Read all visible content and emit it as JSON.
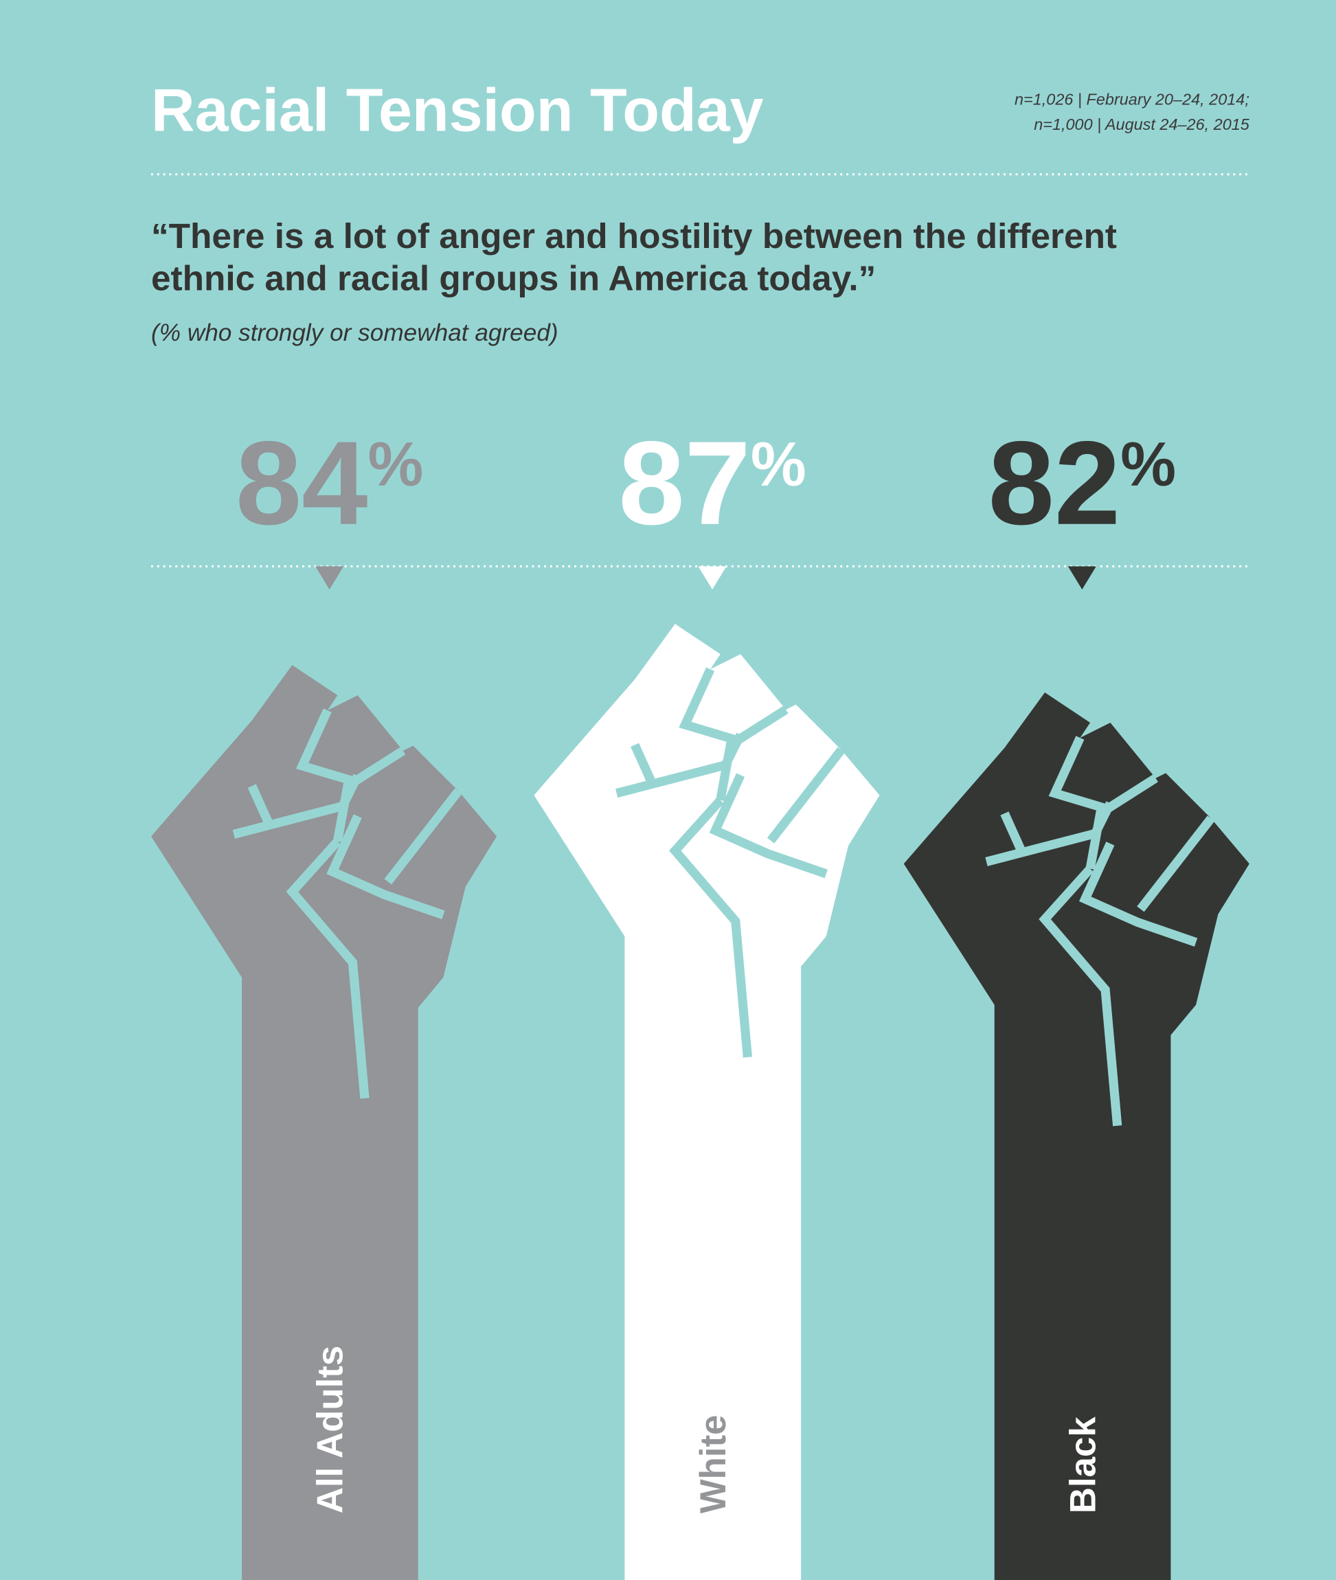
{
  "chart_data": {
    "type": "pictograph",
    "title": "Racial Tension Today",
    "source": [
      "n=1,026 | February 20–24, 2014;",
      "n=1,000 | August 24–26, 2015"
    ],
    "quote": [
      "“There is a lot of anger and hostility between the different",
      "ethnic and racial groups in America today.”"
    ],
    "note": "(% who strongly or somewhat agreed)",
    "categories": [
      "All Adults",
      "White",
      "Black"
    ],
    "values": [
      84,
      87,
      82
    ],
    "value_labels": [
      "84%",
      "87%",
      "82%"
    ],
    "colors": [
      "#939598",
      "#ffffff",
      "#343633"
    ]
  }
}
